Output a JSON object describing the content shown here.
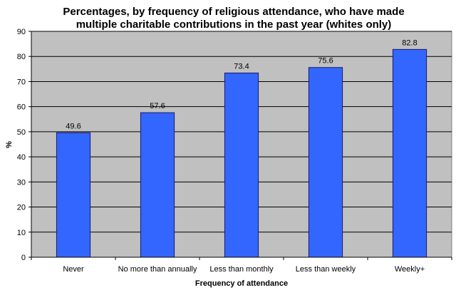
{
  "colors": {
    "plot_background": "#c0c0c0",
    "bar_fill": "#3366ff",
    "bar_stroke": "#1a1a66",
    "gridline": "#000000"
  },
  "chart_data": {
    "type": "bar",
    "title_lines": [
      "Percentages, by frequency of religious attendance, who have made",
      "multiple charitable contributions in the past year (whites only)"
    ],
    "xlabel": "Frequency of attendance",
    "ylabel": "%",
    "categories": [
      "Never",
      "No more than annually",
      "Less than monthly",
      "Less than weekly",
      "Weekly+"
    ],
    "values": [
      49.6,
      57.6,
      73.4,
      75.6,
      82.8
    ],
    "data_labels": [
      "49.6",
      "57.6",
      "73.4",
      "75.6",
      "82.8"
    ],
    "ylim": [
      0,
      90
    ],
    "yticks": [
      0,
      10,
      20,
      30,
      40,
      50,
      60,
      70,
      80,
      90
    ],
    "grid": true,
    "legend": "none"
  }
}
